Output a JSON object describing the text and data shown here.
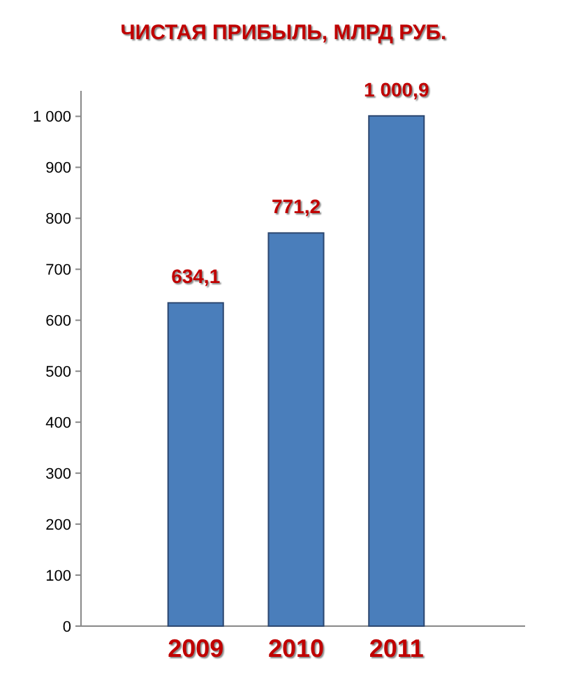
{
  "chart_data": {
    "type": "bar",
    "title": "ЧИСТАЯ ПРИБЫЛЬ, МЛРД РУБ.",
    "categories": [
      "2009",
      "2010",
      "2011"
    ],
    "values": [
      634.1,
      771.2,
      1000.9
    ],
    "value_labels": [
      "634,1",
      "771,2",
      "1 000,9"
    ],
    "color": "#4a7ebb",
    "ylim": [
      0,
      1050
    ],
    "yticks": [
      0,
      100,
      200,
      300,
      400,
      500,
      600,
      700,
      800,
      900,
      {
        "value": 1000,
        "label": "1 000"
      }
    ],
    "grid": false
  }
}
